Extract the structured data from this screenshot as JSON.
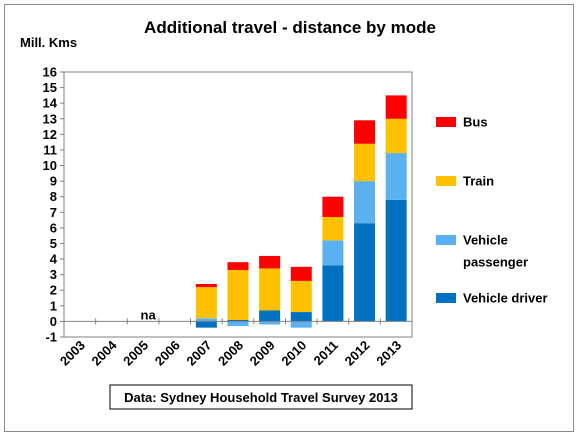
{
  "chart_data": {
    "type": "bar",
    "stacked": true,
    "title": "Additional travel - distance by mode",
    "ylabel": "Mill. Kms",
    "xlabel": "",
    "ylim": [
      -1,
      16
    ],
    "yticks": [
      -1,
      0,
      1,
      2,
      3,
      4,
      5,
      6,
      7,
      8,
      9,
      10,
      11,
      12,
      13,
      14,
      15,
      16
    ],
    "categories": [
      "2003",
      "2004",
      "2005",
      "2006",
      "2007",
      "2008",
      "2009",
      "2010",
      "2011",
      "2012",
      "2013"
    ],
    "series": [
      {
        "name": "Vehicle driver",
        "color": "#0070C0",
        "values": [
          0,
          0,
          0,
          0,
          -0.4,
          0.1,
          0.7,
          0.6,
          3.6,
          6.3,
          7.8
        ]
      },
      {
        "name": "Vehicle passenger",
        "color": "#5BB0F0",
        "values": [
          0,
          0,
          0,
          0,
          0.2,
          -0.3,
          -0.2,
          -0.4,
          1.6,
          2.7,
          3.0
        ]
      },
      {
        "name": "Train",
        "color": "#FFC000",
        "values": [
          0,
          0,
          0,
          0,
          2.0,
          3.2,
          2.7,
          2.0,
          1.5,
          2.4,
          2.2
        ]
      },
      {
        "name": "Bus",
        "color": "#FF0000",
        "values": [
          0,
          0,
          0,
          0,
          0.2,
          0.5,
          0.8,
          0.9,
          1.3,
          1.5,
          1.5
        ]
      }
    ],
    "legend_order": [
      "Bus",
      "Train",
      "Vehicle passenger",
      "Vehicle driver"
    ],
    "legend_labels": {
      "Bus": [
        "Bus"
      ],
      "Train": [
        "Train"
      ],
      "Vehicle passenger": [
        "Vehicle",
        "passenger"
      ],
      "Vehicle driver": [
        "Vehicle driver"
      ]
    },
    "legend_position": "right",
    "annotation": {
      "text": "na",
      "category": "2005"
    },
    "source": "Data: Sydney Household Travel Survey 2013",
    "grid": false
  }
}
